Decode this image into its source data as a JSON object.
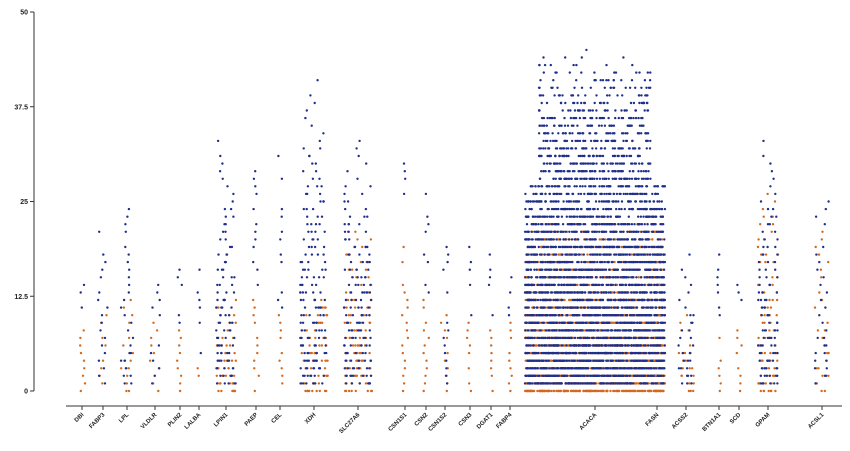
{
  "chart_data": {
    "type": "scatter",
    "title": "",
    "xlabel": "",
    "ylabel": "",
    "ylim": [
      0,
      50
    ],
    "yticks": [
      {
        "value": 0,
        "label": "0"
      },
      {
        "value": 12.5,
        "label": "12.5"
      },
      {
        "value": 25,
        "label": "25"
      },
      {
        "value": 37.5,
        "label": "37.5"
      },
      {
        "value": 50,
        "label": "50"
      }
    ],
    "grid": false,
    "legend": "none",
    "colors": {
      "low_position_marks": "#d2691e",
      "high_position_marks": "#1f2f8a",
      "axis": "#333333"
    },
    "categories": [
      {
        "gene": "DBI",
        "blue_max": 14,
        "orange_max": 8,
        "density": 0.5
      },
      {
        "gene": "FABP3",
        "blue_max": 21,
        "orange_max": 10,
        "density": 0.6
      },
      {
        "gene": "LPL",
        "blue_max": 24,
        "orange_max": 12,
        "density": 0.8
      },
      {
        "gene": "VLDLR",
        "blue_max": 14,
        "orange_max": 9,
        "density": 0.6
      },
      {
        "gene": "PLIN2",
        "blue_max": 16,
        "orange_max": 8,
        "density": 0.4
      },
      {
        "gene": "LALBA",
        "blue_max": 16,
        "orange_max": 4,
        "density": 0.3
      },
      {
        "gene": "LPIN1",
        "blue_max": 33,
        "orange_max": 12,
        "density": 1.4
      },
      {
        "gene": "PAEP",
        "blue_max": 29,
        "orange_max": 13,
        "density": 0.4
      },
      {
        "gene": "CEL",
        "blue_max": 31,
        "orange_max": 10,
        "density": 0.5
      },
      {
        "gene": "XDH",
        "blue_max": 41,
        "orange_max": 13,
        "density": 1.6
      },
      {
        "gene": "SLC27A6",
        "blue_max": 33,
        "orange_max": 22,
        "density": 1.8
      },
      {
        "gene": "CSN1S1",
        "blue_max": 30,
        "orange_max": 20,
        "density": 0.6
      },
      {
        "gene": "CSN2",
        "blue_max": 26,
        "orange_max": 12,
        "density": 0.5
      },
      {
        "gene": "CSN1S2",
        "blue_max": 19,
        "orange_max": 10,
        "density": 0.6
      },
      {
        "gene": "CSN3",
        "blue_max": 19,
        "orange_max": 9,
        "density": 0.5
      },
      {
        "gene": "DGAT1",
        "blue_max": 18,
        "orange_max": 9,
        "density": 0.3
      },
      {
        "gene": "FABP4",
        "blue_max": 15,
        "orange_max": 9,
        "density": 0.3
      },
      {
        "gene": "ACACA",
        "blue_max": 45,
        "orange_max": 22,
        "density": 7.0
      },
      {
        "gene": "FASN",
        "blue_max": 19,
        "orange_max": 10,
        "density": 0.6
      },
      {
        "gene": "ACSS2",
        "blue_max": 18,
        "orange_max": 10,
        "density": 1.1
      },
      {
        "gene": "BTN1A1",
        "blue_max": 18,
        "orange_max": 8,
        "density": 0.3
      },
      {
        "gene": "SCD",
        "blue_max": 14,
        "orange_max": 8,
        "density": 0.4
      },
      {
        "gene": "GPAM",
        "blue_max": 33,
        "orange_max": 26,
        "density": 1.5
      },
      {
        "gene": "ACSL1",
        "blue_max": 25,
        "orange_max": 21,
        "density": 0.9
      }
    ]
  }
}
